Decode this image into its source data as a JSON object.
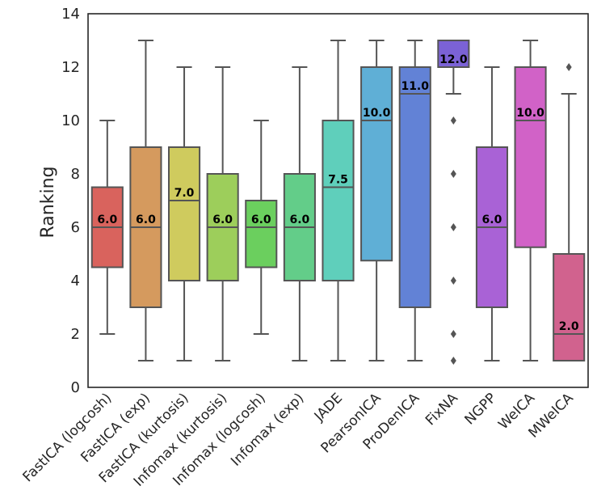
{
  "chart_data": {
    "type": "box",
    "title": "",
    "xlabel": "",
    "ylabel": "Ranking",
    "ylim": [
      0,
      14
    ],
    "yticks": [
      0,
      2,
      4,
      6,
      8,
      10,
      12,
      14
    ],
    "grid": false,
    "boxes": [
      {
        "name": "FastICA (logcosh)",
        "min": 2,
        "q1": 4.5,
        "median": 6,
        "q3": 7.5,
        "max": 10,
        "outliers": [],
        "median_label": "6.0",
        "color": "#d9635d"
      },
      {
        "name": "FastICA (exp)",
        "min": 1,
        "q1": 3,
        "median": 6,
        "q3": 9,
        "max": 13,
        "outliers": [],
        "median_label": "6.0",
        "color": "#d59a5e"
      },
      {
        "name": "FastICA (kurtosis)",
        "min": 1,
        "q1": 4,
        "median": 7,
        "q3": 9,
        "max": 12,
        "outliers": [],
        "median_label": "7.0",
        "color": "#cfcb5e"
      },
      {
        "name": "Infomax (kurtosis)",
        "min": 1,
        "q1": 4,
        "median": 6,
        "q3": 8,
        "max": 12,
        "outliers": [],
        "median_label": "6.0",
        "color": "#9dce5b"
      },
      {
        "name": "Infomax (logcosh)",
        "min": 2,
        "q1": 4.5,
        "median": 6,
        "q3": 7,
        "max": 10,
        "outliers": [],
        "median_label": "6.0",
        "color": "#6bcf5e"
      },
      {
        "name": "Infomax (exp)",
        "min": 1,
        "q1": 4,
        "median": 6,
        "q3": 8,
        "max": 12,
        "outliers": [],
        "median_label": "6.0",
        "color": "#63cd89"
      },
      {
        "name": "JADE",
        "min": 1,
        "q1": 4,
        "median": 7.5,
        "q3": 10,
        "max": 13,
        "outliers": [],
        "median_label": "7.5",
        "color": "#5fcfbb"
      },
      {
        "name": "PearsonICA",
        "min": 1,
        "q1": 4.75,
        "median": 10,
        "q3": 12,
        "max": 13,
        "outliers": [],
        "median_label": "10.0",
        "color": "#5fafd6"
      },
      {
        "name": "ProDenICA",
        "min": 1,
        "q1": 3,
        "median": 11,
        "q3": 12,
        "max": 13,
        "outliers": [],
        "median_label": "11.0",
        "color": "#6282d6"
      },
      {
        "name": "FixNA",
        "min": 11,
        "q1": 12,
        "median": 12,
        "q3": 13,
        "max": 13,
        "outliers": [
          10,
          8,
          6,
          4,
          2,
          1
        ],
        "median_label": "12.0",
        "color": "#7b62d6"
      },
      {
        "name": "NGPP",
        "min": 1,
        "q1": 3,
        "median": 6,
        "q3": 9,
        "max": 12,
        "outliers": [],
        "median_label": "6.0",
        "color": "#a962d6"
      },
      {
        "name": "WeICA",
        "min": 1,
        "q1": 5.25,
        "median": 10,
        "q3": 12,
        "max": 13,
        "outliers": [],
        "median_label": "10.0",
        "color": "#d162c7"
      },
      {
        "name": "MWeICA",
        "min": 1,
        "q1": 1,
        "median": 2,
        "q3": 5,
        "max": 11,
        "outliers": [
          12
        ],
        "median_label": "2.0",
        "color": "#d1628e"
      }
    ]
  }
}
